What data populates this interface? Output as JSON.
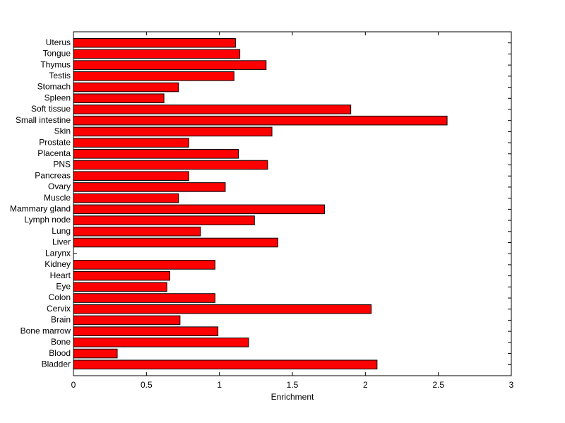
{
  "chart_data": {
    "type": "barh",
    "x_label": "Enrichment",
    "categories": [
      "Bladder",
      "Blood",
      "Bone",
      "Bone marrow",
      "Brain",
      "Cervix",
      "Colon",
      "Eye",
      "Heart",
      "Kidney",
      "Larynx",
      "Liver",
      "Lung",
      "Lymph node",
      "Mammary gland",
      "Muscle",
      "Ovary",
      "Pancreas",
      "PNS",
      "Placenta",
      "Prostate",
      "Skin",
      "Small intestine",
      "Soft tissue",
      "Spleen",
      "Stomach",
      "Testis",
      "Thymus",
      "Tongue",
      "Uterus"
    ],
    "values": [
      2.08,
      0.3,
      1.2,
      0.99,
      0.73,
      2.04,
      0.97,
      0.64,
      0.66,
      0.97,
      0,
      1.4,
      0.87,
      1.24,
      1.72,
      0.72,
      1.04,
      0.79,
      1.33,
      1.13,
      0.79,
      1.36,
      2.56,
      1.9,
      0.62,
      0.72,
      1.1,
      1.32,
      1.14,
      1.11
    ],
    "color": "#ff0000",
    "xlim": [
      0,
      3
    ],
    "xticks": [
      0,
      0.5,
      1,
      1.5,
      2,
      2.5,
      3
    ]
  }
}
